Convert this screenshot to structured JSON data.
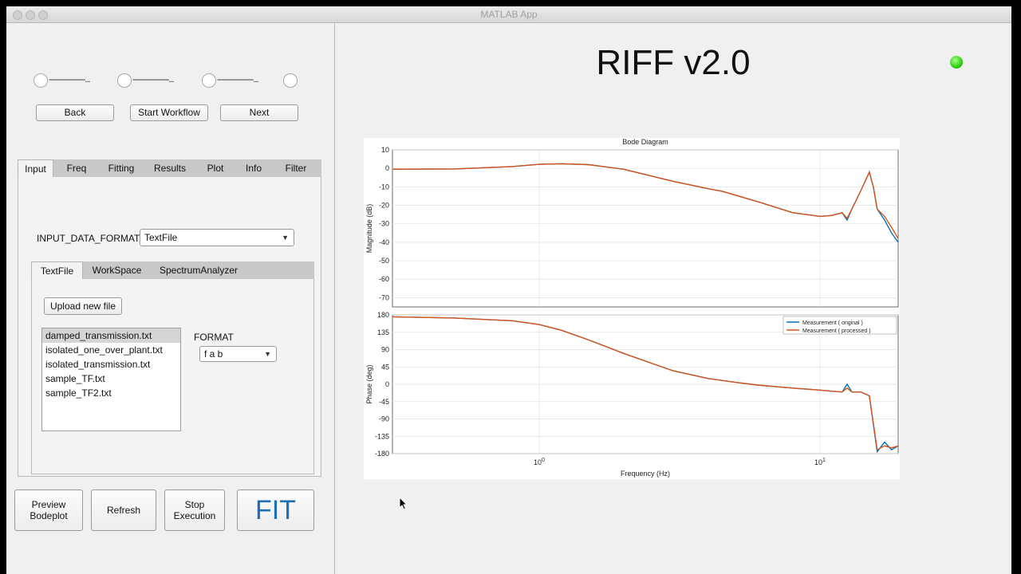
{
  "window": {
    "title": "MATLAB App"
  },
  "workflow": {
    "back": "Back",
    "start": "Start Workflow",
    "next": "Next",
    "dashes": "-----------------..."
  },
  "tabs": [
    "Input",
    "Freq",
    "Fitting",
    "Results",
    "Plot",
    "Info",
    "Filter"
  ],
  "input": {
    "format_label": "INPUT_DATA_FORMAT",
    "format_value": "TextFile",
    "subtabs": [
      "TextFile",
      "WorkSpace",
      "SpectrumAnalyzer"
    ],
    "upload": "Upload new file",
    "files": [
      "damped_transmission.txt",
      "isolated_one_over_plant.txt",
      "isolated_transmission.txt",
      "sample_TF.txt",
      "sample_TF2.txt"
    ],
    "file_format_label": "FORMAT",
    "file_format_value": "f a b"
  },
  "actions": {
    "preview_line1": "Preview",
    "preview_line2": "Bodeplot",
    "refresh": "Refresh",
    "stop_line1": "Stop",
    "stop_line2": "Execution",
    "fit": "FIT"
  },
  "app_title": "RIFF v2.0",
  "colors": {
    "led": "#2fcf10",
    "fit_text": "#1c6fb8",
    "original": "#0072bd",
    "processed": "#d95319"
  },
  "chart_data": {
    "type": "line",
    "title": "Bode Diagram",
    "xlabel": "Frequency  (Hz)",
    "xscale": "log",
    "xlim": [
      0.3,
      19
    ],
    "magnitude": {
      "ylabel": "Magnitude (dB)",
      "ylim": [
        -75,
        10
      ],
      "yticks": [
        10,
        0,
        -10,
        -20,
        -30,
        -40,
        -50,
        -60,
        -70
      ],
      "series": [
        {
          "name": "Measurement ( original )",
          "x": [
            0.3,
            0.5,
            0.8,
            1.0,
            1.2,
            1.5,
            2.0,
            3.0,
            4.0,
            4.5,
            5.0,
            6.0,
            8.0,
            10.0,
            11.0,
            12.0,
            12.5,
            13.0,
            14.0,
            15.0,
            15.5,
            16.0,
            17.0,
            18.0,
            19.0
          ],
          "y": [
            -0.5,
            -0.3,
            1.0,
            2.2,
            2.5,
            2.0,
            -0.5,
            -7.0,
            -11.0,
            -12.5,
            -14.5,
            -18.0,
            -24.0,
            -26.0,
            -25.5,
            -24.0,
            -28.0,
            -22.0,
            -12.0,
            -2.0,
            -10.0,
            -22.0,
            -28.0,
            -35.0,
            -40.0
          ]
        },
        {
          "name": "Measurement ( processed )",
          "x": [
            0.3,
            0.5,
            0.8,
            1.0,
            1.2,
            1.5,
            2.0,
            3.0,
            4.0,
            4.5,
            5.0,
            6.0,
            8.0,
            10.0,
            11.0,
            12.0,
            12.5,
            13.0,
            14.0,
            15.0,
            15.5,
            16.0,
            17.0,
            18.0,
            19.0
          ],
          "y": [
            -0.5,
            -0.3,
            1.0,
            2.2,
            2.5,
            2.0,
            -0.5,
            -7.0,
            -11.0,
            -12.5,
            -14.5,
            -18.0,
            -24.0,
            -26.0,
            -25.5,
            -24.0,
            -27.0,
            -22.0,
            -12.0,
            -2.0,
            -10.0,
            -22.0,
            -26.0,
            -32.0,
            -38.0
          ]
        }
      ]
    },
    "phase": {
      "ylabel": "Phase (deg)",
      "ylim": [
        -180,
        180
      ],
      "yticks": [
        180,
        135,
        90,
        45,
        0,
        -45,
        -90,
        -135,
        -180
      ],
      "series": [
        {
          "name": "Measurement ( original )",
          "x": [
            0.3,
            0.5,
            0.8,
            1.0,
            1.2,
            1.5,
            2.0,
            2.5,
            3.0,
            4.0,
            5.0,
            6.0,
            8.0,
            10.0,
            11.0,
            12.0,
            12.5,
            13.0,
            14.0,
            15.0,
            16.0,
            17.0,
            18.0,
            19.0
          ],
          "y": [
            175,
            172,
            165,
            155,
            140,
            115,
            80,
            55,
            35,
            15,
            5,
            -2,
            -10,
            -15,
            -18,
            -20,
            0,
            -20,
            -20,
            -30,
            -175,
            -150,
            -170,
            -160
          ]
        },
        {
          "name": "Measurement ( processed )",
          "x": [
            0.3,
            0.5,
            0.8,
            1.0,
            1.2,
            1.5,
            2.0,
            2.5,
            3.0,
            4.0,
            5.0,
            6.0,
            8.0,
            10.0,
            11.0,
            12.0,
            12.5,
            13.0,
            14.0,
            15.0,
            16.0,
            17.0,
            18.0,
            19.0
          ],
          "y": [
            175,
            172,
            165,
            155,
            140,
            115,
            80,
            55,
            35,
            15,
            5,
            -2,
            -10,
            -15,
            -18,
            -20,
            -10,
            -20,
            -20,
            -30,
            -170,
            -160,
            -165,
            -160
          ]
        }
      ]
    },
    "xtick_labels": [
      "10^0",
      "10^1"
    ],
    "legend": [
      "Measurement ( original )",
      "Measurement ( processed )"
    ],
    "legend_placement": "top-right",
    "grid": true
  }
}
